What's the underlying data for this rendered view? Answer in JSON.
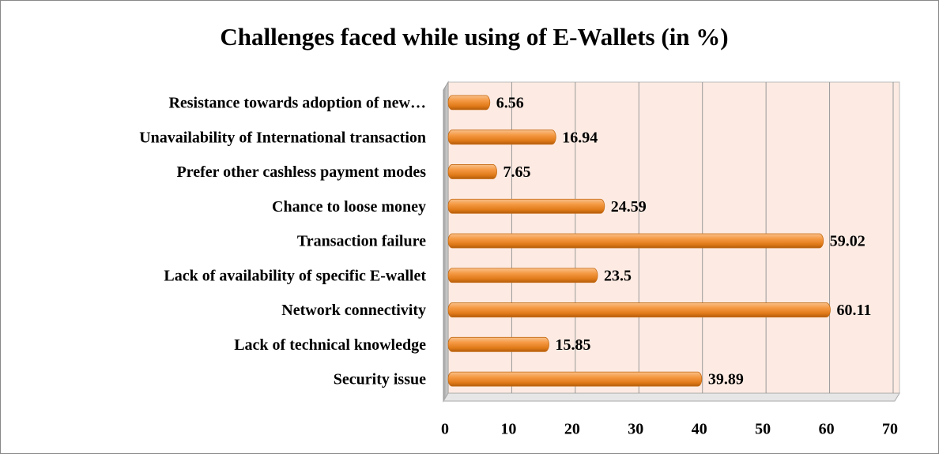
{
  "chart_data": {
    "type": "bar",
    "orientation": "horizontal",
    "title": "Challenges faced while using of E-Wallets (in %)",
    "categories": [
      "Security issue",
      "Lack of technical knowledge",
      "Network connectivity",
      "Lack of availability of specific E-wallet",
      "Transaction failure",
      "Chance to loose money",
      "Prefer other cashless payment modes",
      "Unavailability of International transaction",
      "Resistance towards adoption of new…"
    ],
    "values": [
      39.89,
      15.85,
      60.11,
      23.5,
      59.02,
      24.59,
      7.65,
      16.94,
      6.56
    ],
    "color": "#f28c28",
    "xlim": [
      0,
      70
    ],
    "xticks": [
      0,
      10,
      20,
      30,
      40,
      50,
      60,
      70
    ],
    "grid": true
  }
}
